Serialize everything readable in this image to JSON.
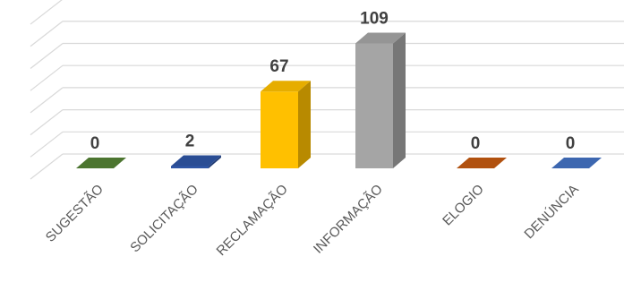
{
  "chart_data": {
    "type": "bar",
    "style": "3d-column",
    "categories": [
      "SUGESTÃO",
      "SOLICITAÇÃO",
      "RECLAMAÇÃO",
      "INFORMAÇÃO",
      "ELOGIO",
      "DENÚNCIA"
    ],
    "values": [
      0,
      2,
      67,
      109,
      0,
      0
    ],
    "colors": [
      "#548235",
      "#2f55a4",
      "#ffc000",
      "#a5a5a5",
      "#c55a11",
      "#4472c4"
    ],
    "ylim": [
      0,
      140
    ],
    "y_tick_step": 20,
    "grid": true,
    "legend": "none",
    "title": "",
    "xlabel": "",
    "ylabel": ""
  }
}
